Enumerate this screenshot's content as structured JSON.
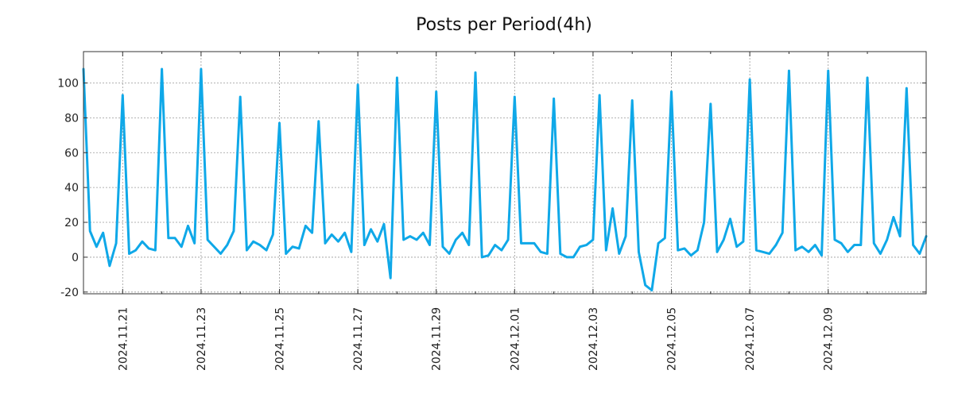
{
  "chart_data": {
    "type": "line",
    "title": "Posts per Period(4h)",
    "xlabel": "",
    "ylabel": "",
    "ylim": [
      -21,
      118
    ],
    "yticks": [
      -20,
      0,
      20,
      40,
      60,
      80,
      100
    ],
    "xticks": [
      "2024.11.21",
      "2024.11.23",
      "2024.11.25",
      "2024.11.27",
      "2024.11.29",
      "2024.12.01",
      "2024.12.03",
      "2024.12.05",
      "2024.12.07",
      "2024.12.09"
    ],
    "grid": true,
    "colors": {
      "line": "#0fa8e8",
      "grid": "#999999",
      "axis": "#333333"
    },
    "series": [
      {
        "name": "posts",
        "values": [
          108,
          15,
          6,
          14,
          -5,
          8,
          93,
          2,
          4,
          9,
          5,
          4,
          108,
          11,
          11,
          6,
          18,
          8,
          108,
          10,
          6,
          2,
          7,
          15,
          92,
          4,
          9,
          7,
          4,
          13,
          77,
          2,
          6,
          5,
          18,
          14,
          78,
          8,
          13,
          9,
          14,
          3,
          99,
          7,
          16,
          9,
          19,
          -12,
          103,
          10,
          12,
          10,
          14,
          7,
          95,
          6,
          2,
          10,
          14,
          7,
          106,
          0,
          1,
          7,
          4,
          10,
          92,
          8,
          8,
          8,
          3,
          2,
          91,
          2,
          0,
          0,
          6,
          7,
          10,
          93,
          4,
          28,
          2,
          12,
          90,
          3,
          -16,
          -19,
          8,
          11,
          95,
          4,
          5,
          1,
          4,
          20,
          88,
          3,
          10,
          22,
          6,
          9,
          102,
          4,
          3,
          2,
          7,
          14,
          107,
          4,
          6,
          3,
          7,
          1,
          107,
          10,
          8,
          3,
          7,
          7,
          103,
          8,
          2,
          10,
          23,
          12,
          97,
          7,
          2,
          12
        ]
      }
    ]
  }
}
